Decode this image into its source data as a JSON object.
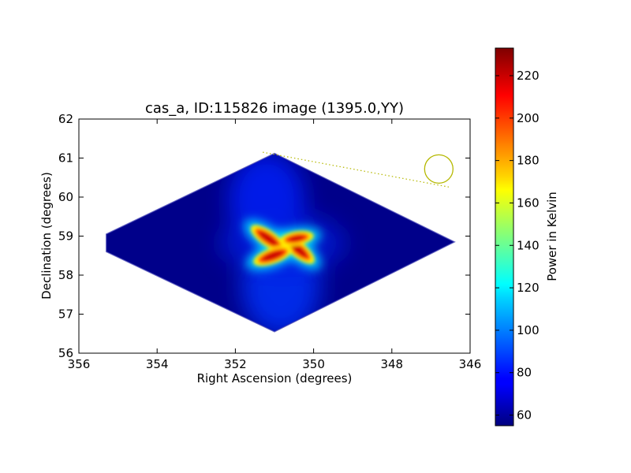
{
  "chart_data": {
    "type": "heatmap",
    "title": "cas_a, ID:115826 image (1395.0,YY)",
    "xlabel": "Right Ascension (degrees)",
    "ylabel": "Declination (degrees)",
    "xlim": [
      356,
      346
    ],
    "ylim": [
      56,
      62
    ],
    "xticks": [
      "356",
      "354",
      "352",
      "350",
      "348",
      "346"
    ],
    "yticks": [
      "56",
      "57",
      "58",
      "59",
      "60",
      "61",
      "62"
    ],
    "colorbar": {
      "label": "Power in Kelvin",
      "range": [
        55,
        233
      ],
      "ticks": [
        "60",
        "80",
        "100",
        "120",
        "140",
        "160",
        "180",
        "200",
        "220"
      ],
      "colormap": "jet"
    },
    "field_boundary_ra_dec": [
      [
        351.0,
        61.12
      ],
      [
        355.3,
        59.05
      ],
      [
        355.3,
        58.6
      ],
      [
        351.0,
        56.55
      ],
      [
        346.4,
        58.85
      ]
    ],
    "background_level": 58,
    "source": {
      "ra": 350.8,
      "dec": 58.82,
      "peak": 225
    },
    "beam": {
      "ra": 346.8,
      "dec": 60.72,
      "color": "#b5b800"
    },
    "dotted_line": {
      "from": [
        351.3,
        61.15
      ],
      "to": [
        346.5,
        60.25
      ],
      "color": "#b5b800"
    },
    "grid": false,
    "legend": "none"
  }
}
